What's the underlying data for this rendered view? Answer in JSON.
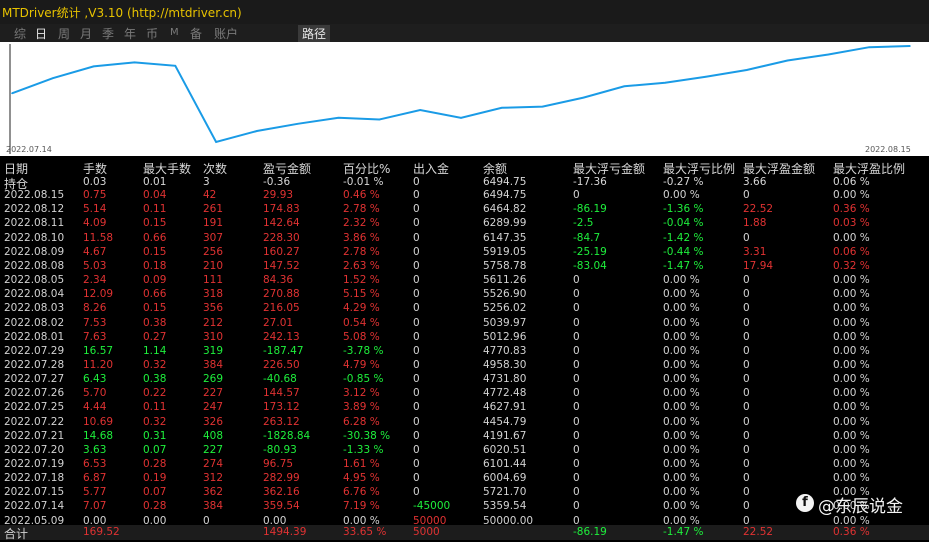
{
  "window": {
    "title": "MTDriver统计 ,V3.10 (http://mtdriver.cn)"
  },
  "tabs": [
    "综",
    "日",
    "周",
    "月",
    "季",
    "年",
    "币",
    "M",
    "备",
    "账户",
    "路径"
  ],
  "chart": {
    "start_date": "2022.07.14",
    "end_date": "2022.08.15",
    "line_color": "#1a9be6"
  },
  "chart_data": {
    "type": "line",
    "x": [
      "2022.07.14",
      "2022.07.15",
      "2022.07.18",
      "2022.07.19",
      "2022.07.20",
      "2022.07.21",
      "2022.07.22",
      "2022.07.25",
      "2022.07.26",
      "2022.07.27",
      "2022.07.28",
      "2022.07.29",
      "2022.08.01",
      "2022.08.02",
      "2022.08.03",
      "2022.08.04",
      "2022.08.05",
      "2022.08.08",
      "2022.08.09",
      "2022.08.10",
      "2022.08.11",
      "2022.08.12",
      "2022.08.15"
    ],
    "values": [
      5359.54,
      5721.7,
      6004.69,
      6101.44,
      6020.51,
      4191.67,
      4454.79,
      4627.91,
      4772.48,
      4731.8,
      4958.3,
      4770.83,
      5012.96,
      5039.97,
      5256.02,
      5526.9,
      5611.26,
      5758.78,
      5919.05,
      6147.35,
      6289.99,
      6464.82,
      6494.75
    ]
  },
  "table": {
    "headers": [
      "日期",
      "手数",
      "最大手数",
      "次数",
      "盈亏金额",
      "百分比%",
      "出入金",
      "余额",
      "最大浮亏金额",
      "最大浮亏比例",
      "最大浮盈金额",
      "最大浮盈比例"
    ],
    "rows": [
      {
        "c": [
          "持仓",
          "0.03",
          "0.01",
          "3",
          "-0.36",
          "-0.01 %",
          "0",
          "6494.75",
          "-17.36",
          "-0.27 %",
          "3.66",
          "0.06 %"
        ],
        "k": [
          "w",
          "g",
          "g",
          "g",
          "g",
          "g",
          "w",
          "w",
          "g",
          "g",
          "r",
          "r"
        ]
      },
      {
        "c": [
          "2022.08.15",
          "0.75",
          "0.04",
          "42",
          "29.93",
          "0.46 %",
          "0",
          "6494.75",
          "0",
          "0.00 %",
          "0",
          "0.00 %"
        ],
        "k": [
          "w",
          "r",
          "r",
          "r",
          "r",
          "r",
          "w",
          "w",
          "w",
          "w",
          "w",
          "w"
        ]
      },
      {
        "c": [
          "2022.08.12",
          "5.14",
          "0.11",
          "261",
          "174.83",
          "2.78 %",
          "0",
          "6464.82",
          "-86.19",
          "-1.36 %",
          "22.52",
          "0.36 %"
        ],
        "k": [
          "w",
          "r",
          "r",
          "r",
          "r",
          "r",
          "w",
          "w",
          "g",
          "g",
          "r",
          "r"
        ]
      },
      {
        "c": [
          "2022.08.11",
          "4.09",
          "0.15",
          "191",
          "142.64",
          "2.32 %",
          "0",
          "6289.99",
          "-2.5",
          "-0.04 %",
          "1.88",
          "0.03 %"
        ],
        "k": [
          "w",
          "r",
          "r",
          "r",
          "r",
          "r",
          "w",
          "w",
          "g",
          "g",
          "r",
          "r"
        ]
      },
      {
        "c": [
          "2022.08.10",
          "11.58",
          "0.66",
          "307",
          "228.30",
          "3.86 %",
          "0",
          "6147.35",
          "-84.7",
          "-1.42 %",
          "0",
          "0.00 %"
        ],
        "k": [
          "w",
          "r",
          "r",
          "r",
          "r",
          "r",
          "w",
          "w",
          "g",
          "g",
          "w",
          "w"
        ]
      },
      {
        "c": [
          "2022.08.09",
          "4.67",
          "0.15",
          "256",
          "160.27",
          "2.78 %",
          "0",
          "5919.05",
          "-25.19",
          "-0.44 %",
          "3.31",
          "0.06 %"
        ],
        "k": [
          "w",
          "r",
          "r",
          "r",
          "r",
          "r",
          "w",
          "w",
          "g",
          "g",
          "r",
          "r"
        ]
      },
      {
        "c": [
          "2022.08.08",
          "5.03",
          "0.18",
          "210",
          "147.52",
          "2.63 %",
          "0",
          "5758.78",
          "-83.04",
          "-1.47 %",
          "17.94",
          "0.32 %"
        ],
        "k": [
          "w",
          "r",
          "r",
          "r",
          "r",
          "r",
          "w",
          "w",
          "g",
          "g",
          "r",
          "r"
        ]
      },
      {
        "c": [
          "2022.08.05",
          "2.34",
          "0.09",
          "111",
          "84.36",
          "1.52 %",
          "0",
          "5611.26",
          "0",
          "0.00 %",
          "0",
          "0.00 %"
        ],
        "k": [
          "w",
          "r",
          "r",
          "r",
          "r",
          "r",
          "w",
          "w",
          "w",
          "w",
          "w",
          "w"
        ]
      },
      {
        "c": [
          "2022.08.04",
          "12.09",
          "0.66",
          "318",
          "270.88",
          "5.15 %",
          "0",
          "5526.90",
          "0",
          "0.00 %",
          "0",
          "0.00 %"
        ],
        "k": [
          "w",
          "r",
          "r",
          "r",
          "r",
          "r",
          "w",
          "w",
          "w",
          "w",
          "w",
          "w"
        ]
      },
      {
        "c": [
          "2022.08.03",
          "8.26",
          "0.15",
          "356",
          "216.05",
          "4.29 %",
          "0",
          "5256.02",
          "0",
          "0.00 %",
          "0",
          "0.00 %"
        ],
        "k": [
          "w",
          "r",
          "r",
          "r",
          "r",
          "r",
          "w",
          "w",
          "w",
          "w",
          "w",
          "w"
        ]
      },
      {
        "c": [
          "2022.08.02",
          "7.53",
          "0.38",
          "212",
          "27.01",
          "0.54 %",
          "0",
          "5039.97",
          "0",
          "0.00 %",
          "0",
          "0.00 %"
        ],
        "k": [
          "w",
          "r",
          "r",
          "r",
          "r",
          "r",
          "w",
          "w",
          "w",
          "w",
          "w",
          "w"
        ]
      },
      {
        "c": [
          "2022.08.01",
          "7.63",
          "0.27",
          "310",
          "242.13",
          "5.08 %",
          "0",
          "5012.96",
          "0",
          "0.00 %",
          "0",
          "0.00 %"
        ],
        "k": [
          "w",
          "r",
          "r",
          "r",
          "r",
          "r",
          "w",
          "w",
          "w",
          "w",
          "w",
          "w"
        ]
      },
      {
        "c": [
          "2022.07.29",
          "16.57",
          "1.14",
          "319",
          "-187.47",
          "-3.78 %",
          "0",
          "4770.83",
          "0",
          "0.00 %",
          "0",
          "0.00 %"
        ],
        "k": [
          "w",
          "g",
          "g",
          "g",
          "g",
          "g",
          "w",
          "w",
          "w",
          "w",
          "w",
          "w"
        ]
      },
      {
        "c": [
          "2022.07.28",
          "11.20",
          "0.32",
          "384",
          "226.50",
          "4.79 %",
          "0",
          "4958.30",
          "0",
          "0.00 %",
          "0",
          "0.00 %"
        ],
        "k": [
          "w",
          "r",
          "r",
          "r",
          "r",
          "r",
          "w",
          "w",
          "w",
          "w",
          "w",
          "w"
        ]
      },
      {
        "c": [
          "2022.07.27",
          "6.43",
          "0.38",
          "269",
          "-40.68",
          "-0.85 %",
          "0",
          "4731.80",
          "0",
          "0.00 %",
          "0",
          "0.00 %"
        ],
        "k": [
          "w",
          "g",
          "g",
          "g",
          "g",
          "g",
          "w",
          "w",
          "w",
          "w",
          "w",
          "w"
        ]
      },
      {
        "c": [
          "2022.07.26",
          "5.70",
          "0.22",
          "227",
          "144.57",
          "3.12 %",
          "0",
          "4772.48",
          "0",
          "0.00 %",
          "0",
          "0.00 %"
        ],
        "k": [
          "w",
          "r",
          "r",
          "r",
          "r",
          "r",
          "w",
          "w",
          "w",
          "w",
          "w",
          "w"
        ]
      },
      {
        "c": [
          "2022.07.25",
          "4.44",
          "0.11",
          "247",
          "173.12",
          "3.89 %",
          "0",
          "4627.91",
          "0",
          "0.00 %",
          "0",
          "0.00 %"
        ],
        "k": [
          "w",
          "r",
          "r",
          "r",
          "r",
          "r",
          "w",
          "w",
          "w",
          "w",
          "w",
          "w"
        ]
      },
      {
        "c": [
          "2022.07.22",
          "10.69",
          "0.32",
          "326",
          "263.12",
          "6.28 %",
          "0",
          "4454.79",
          "0",
          "0.00 %",
          "0",
          "0.00 %"
        ],
        "k": [
          "w",
          "r",
          "r",
          "r",
          "r",
          "r",
          "w",
          "w",
          "w",
          "w",
          "w",
          "w"
        ]
      },
      {
        "c": [
          "2022.07.21",
          "14.68",
          "0.31",
          "408",
          "-1828.84",
          "-30.38 %",
          "0",
          "4191.67",
          "0",
          "0.00 %",
          "0",
          "0.00 %"
        ],
        "k": [
          "w",
          "g",
          "g",
          "g",
          "g",
          "g",
          "w",
          "w",
          "w",
          "w",
          "w",
          "w"
        ]
      },
      {
        "c": [
          "2022.07.20",
          "3.63",
          "0.07",
          "227",
          "-80.93",
          "-1.33 %",
          "0",
          "6020.51",
          "0",
          "0.00 %",
          "0",
          "0.00 %"
        ],
        "k": [
          "w",
          "g",
          "g",
          "g",
          "g",
          "g",
          "w",
          "w",
          "w",
          "w",
          "w",
          "w"
        ]
      },
      {
        "c": [
          "2022.07.19",
          "6.53",
          "0.28",
          "274",
          "96.75",
          "1.61 %",
          "0",
          "6101.44",
          "0",
          "0.00 %",
          "0",
          "0.00 %"
        ],
        "k": [
          "w",
          "r",
          "r",
          "r",
          "r",
          "r",
          "w",
          "w",
          "w",
          "w",
          "w",
          "w"
        ]
      },
      {
        "c": [
          "2022.07.18",
          "6.87",
          "0.19",
          "312",
          "282.99",
          "4.95 %",
          "0",
          "6004.69",
          "0",
          "0.00 %",
          "0",
          "0.00 %"
        ],
        "k": [
          "w",
          "r",
          "r",
          "r",
          "r",
          "r",
          "w",
          "w",
          "w",
          "w",
          "w",
          "w"
        ]
      },
      {
        "c": [
          "2022.07.15",
          "5.77",
          "0.07",
          "362",
          "362.16",
          "6.76 %",
          "0",
          "5721.70",
          "0",
          "0.00 %",
          "0",
          "0.00 %"
        ],
        "k": [
          "w",
          "r",
          "r",
          "r",
          "r",
          "r",
          "w",
          "w",
          "w",
          "w",
          "w",
          "w"
        ]
      },
      {
        "c": [
          "2022.07.14",
          "7.07",
          "0.28",
          "384",
          "359.54",
          "7.19 %",
          "-45000",
          "5359.54",
          "0",
          "0.00 %",
          "0",
          "0.00 %"
        ],
        "k": [
          "w",
          "r",
          "r",
          "r",
          "r",
          "r",
          "g",
          "w",
          "w",
          "w",
          "w",
          "w"
        ]
      },
      {
        "c": [
          "2022.05.09",
          "0.00",
          "0.00",
          "0",
          "0.00",
          "0.00 %",
          "50000",
          "50000.00",
          "0",
          "0.00 %",
          "0",
          "0.00 %"
        ],
        "k": [
          "w",
          "w",
          "w",
          "w",
          "w",
          "w",
          "r",
          "w",
          "w",
          "w",
          "w",
          "w"
        ]
      }
    ],
    "total": {
      "c": [
        "合计",
        "169.52",
        "",
        "",
        "1494.39",
        "33.65 %",
        "5000",
        "",
        "-86.19",
        "-1.47 %",
        "22.52",
        "0.36 %"
      ],
      "k": [
        "w",
        "r",
        "w",
        "w",
        "r",
        "r",
        "r",
        "w",
        "g",
        "g",
        "r",
        "r"
      ]
    }
  },
  "brand": {
    "icon": "f",
    "text": "@东辰说金"
  }
}
